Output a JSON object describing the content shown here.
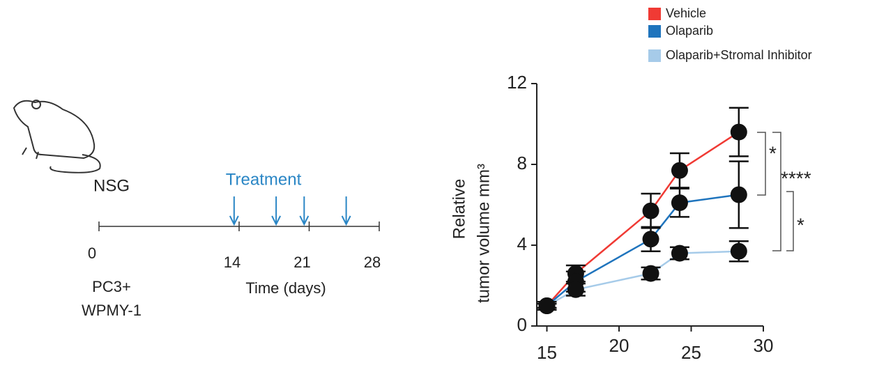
{
  "diagram": {
    "strain": "NSG",
    "cells": [
      "PC3+",
      "WPMY-1"
    ],
    "treatment_label": "Treatment",
    "axis_label": "Time (days)",
    "xlim": [
      0,
      28
    ],
    "xticks": [
      0,
      14,
      21,
      28
    ],
    "treatment_days": [
      13.5,
      17.7,
      20.5,
      24.7
    ]
  },
  "chart_data": {
    "type": "line",
    "ylabel": [
      "Relative",
      "tumor volume mm³"
    ],
    "x": [
      15,
      17,
      22.2,
      24.2,
      28.3
    ],
    "xlim": [
      14.3,
      30
    ],
    "xticks": [
      15,
      20,
      25,
      30
    ],
    "ylim": [
      0,
      12
    ],
    "yticks": [
      0,
      4,
      8,
      12
    ],
    "series": [
      {
        "name": "Vehicle",
        "color": "#f03a34",
        "values": [
          1.0,
          2.6,
          5.7,
          7.7,
          9.6
        ],
        "errors": [
          0.2,
          0.4,
          0.85,
          0.85,
          1.2
        ]
      },
      {
        "name": "Olaparib",
        "color": "#1f74bd",
        "values": [
          1.0,
          2.2,
          4.3,
          6.1,
          6.5
        ],
        "errors": [
          0.2,
          0.5,
          0.6,
          0.7,
          1.65
        ]
      },
      {
        "name": "Olaparib+Stromal Inhibitor",
        "color": "#a6cbe9",
        "values": [
          1.0,
          1.8,
          2.6,
          3.6,
          3.7
        ],
        "errors": [
          0.1,
          0.3,
          0.3,
          0.3,
          0.5
        ]
      }
    ],
    "annotations": [
      "*",
      "****",
      "*"
    ]
  }
}
